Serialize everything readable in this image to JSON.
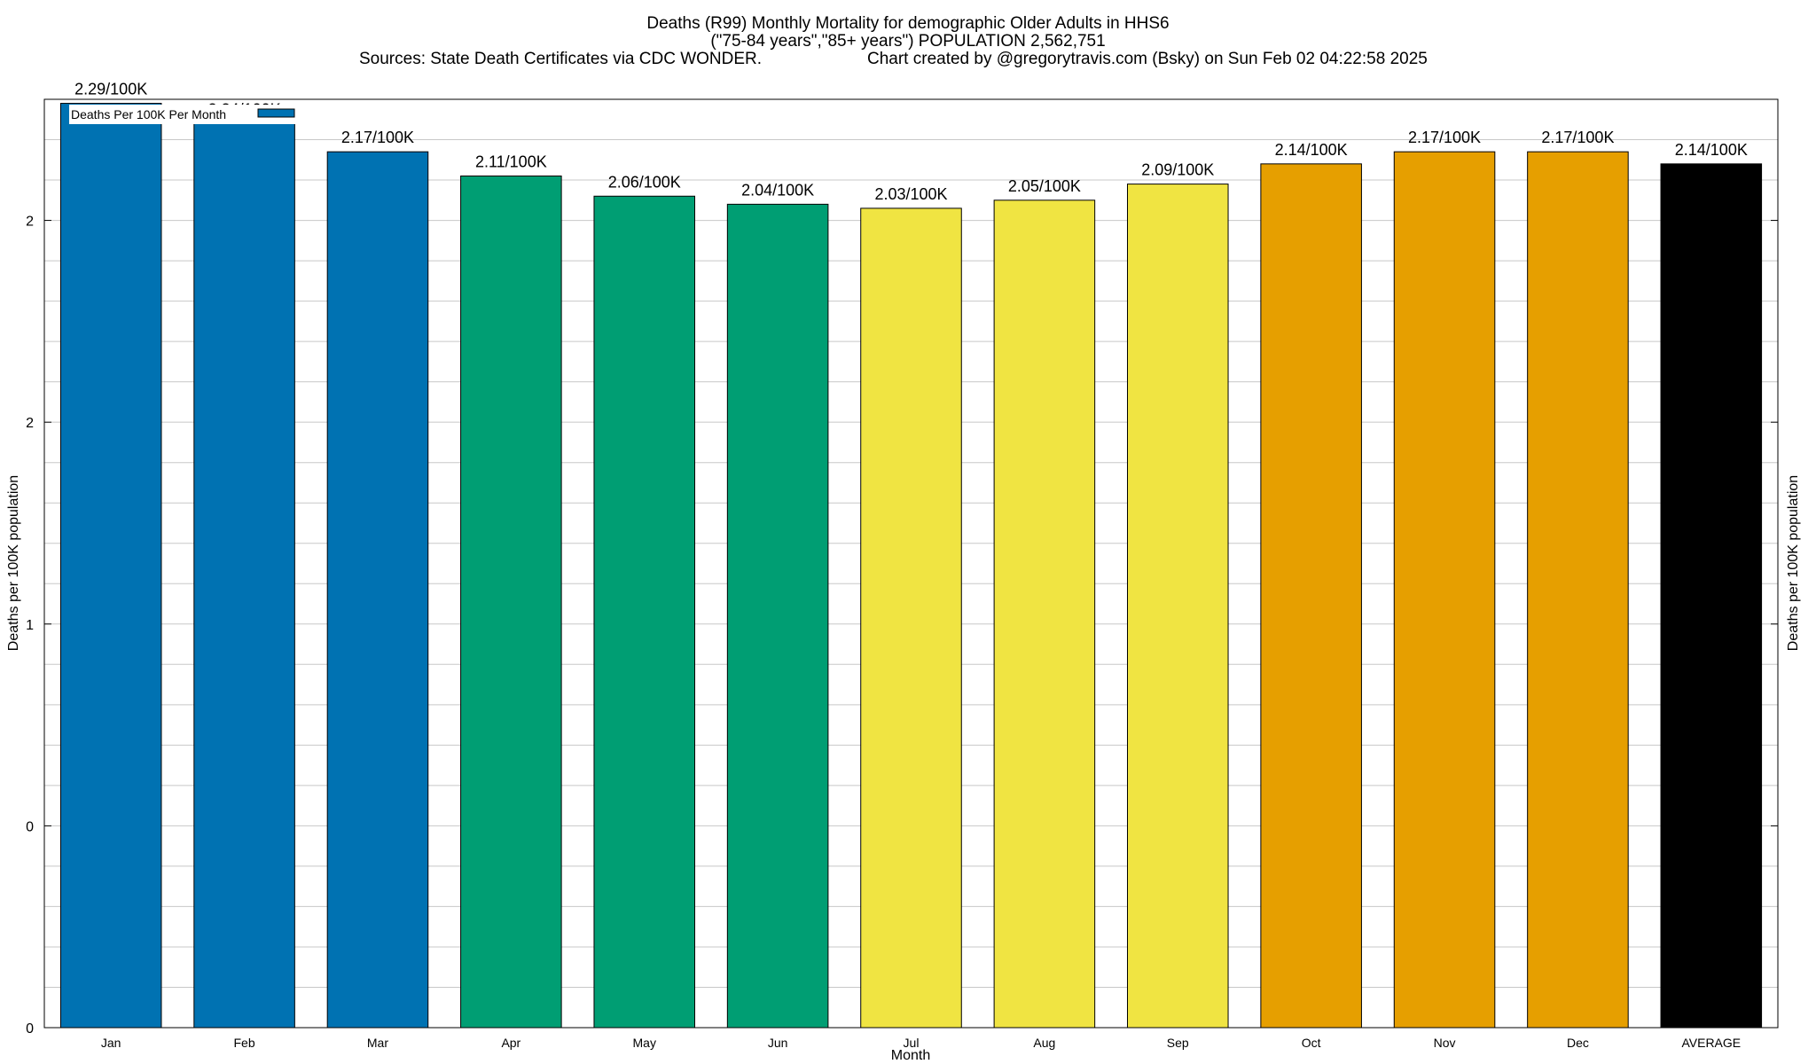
{
  "chart_data": {
    "type": "bar",
    "title": "Deaths (R99) Monthly Mortality for demographic Older Adults in HHS6",
    "subtitle": "(\"75-84 years\",\"85+ years\") POPULATION 2,562,751",
    "source_line": "Sources: State Death Certificates via CDC WONDER.",
    "credit_line": "Chart created by @gregorytravis.com (Bsky) on Sun Feb 02 04:22:58 2025",
    "xlabel": "Month",
    "ylabel": "Deaths per 100K population",
    "ylabel_right": "Deaths per 100K population",
    "legend": {
      "label": "Deaths Per 100K Per Month",
      "position": "top-left"
    },
    "categories": [
      "Jan",
      "Feb",
      "Mar",
      "Apr",
      "May",
      "Jun",
      "Jul",
      "Aug",
      "Sep",
      "Oct",
      "Nov",
      "Dec",
      "AVERAGE"
    ],
    "values": [
      2.29,
      2.24,
      2.17,
      2.11,
      2.06,
      2.04,
      2.03,
      2.05,
      2.09,
      2.14,
      2.17,
      2.17,
      2.14
    ],
    "value_labels": [
      "2.29/100K",
      "2.24/100K",
      "2.17/100K",
      "2.11/100K",
      "2.06/100K",
      "2.04/100K",
      "2.03/100K",
      "2.05/100K",
      "2.09/100K",
      "2.14/100K",
      "2.17/100K",
      "2.17/100K",
      "2.14/100K"
    ],
    "colors": [
      "#0072b2",
      "#0072b2",
      "#0072b2",
      "#009e73",
      "#009e73",
      "#009e73",
      "#f0e442",
      "#f0e442",
      "#f0e442",
      "#e69f00",
      "#e69f00",
      "#e69f00",
      "#000000"
    ],
    "ylim": [
      0,
      2.3
    ],
    "yticks": [
      0,
      0.5,
      1,
      1.5,
      2
    ],
    "ytick_labels": [
      "0",
      "0",
      "1",
      "2",
      "2"
    ],
    "grid": true,
    "minor_grid_step": 0.1
  }
}
